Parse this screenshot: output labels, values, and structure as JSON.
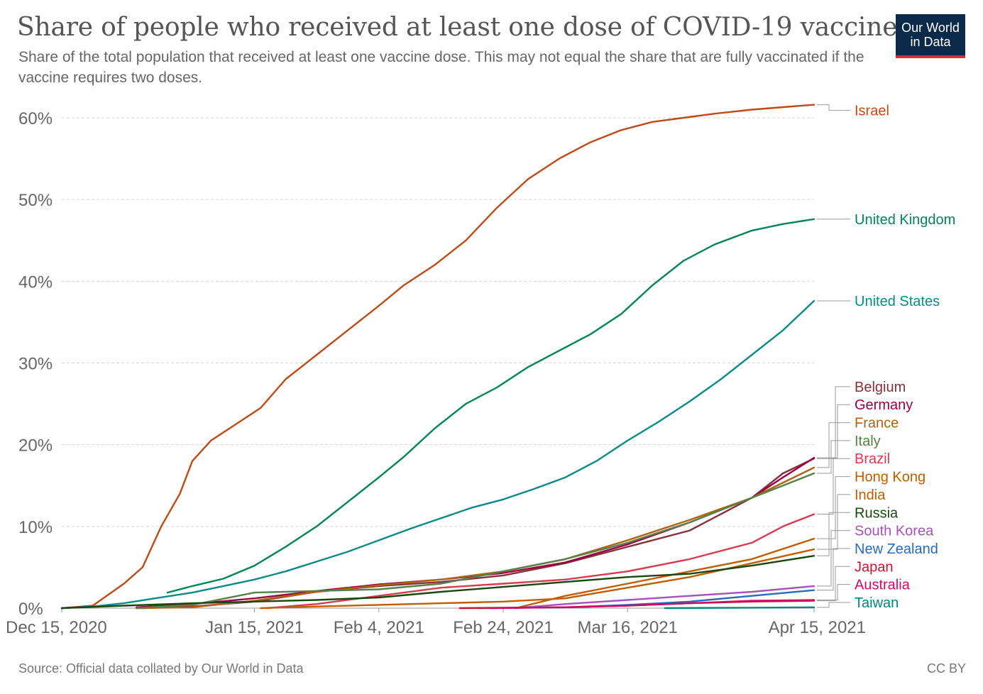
{
  "header": {
    "title": "Share of people who received at least one dose of COVID-19 vaccine",
    "subtitle": "Share of the total population that received at least one vaccine dose. This may not equal the share that are fully vaccinated if the vaccine requires two doses.",
    "logo_line1": "Our World",
    "logo_line2": "in Data"
  },
  "footer": {
    "source": "Source: Official data collated by Our World in Data",
    "license": "CC BY"
  },
  "chart_data": {
    "type": "line",
    "title": "Share of people who received at least one dose of COVID-19 vaccine",
    "xlabel": "",
    "ylabel": "",
    "x_unit": "days",
    "xlim": [
      "2020-12-15",
      "2021-04-15"
    ],
    "ylim": [
      0,
      60
    ],
    "y_ticks": [
      "0%",
      "10%",
      "20%",
      "30%",
      "40%",
      "50%",
      "60%"
    ],
    "y_tick_values": [
      0,
      10,
      20,
      30,
      40,
      50,
      60
    ],
    "x_ticks": [
      "Dec 15, 2020",
      "Jan 15, 2021",
      "Feb 4, 2021",
      "Feb 24, 2021",
      "Mar 16, 2021",
      "Apr 15, 2021"
    ],
    "x_tick_dates": [
      "2020-12-15",
      "2021-01-15",
      "2021-02-04",
      "2021-02-24",
      "2021-03-16",
      "2021-04-15"
    ],
    "grid": "horizontal dashed",
    "legend": "right (line-end labels)",
    "series": [
      {
        "name": "Israel",
        "color": "#be4a17",
        "points": [
          [
            "2020-12-15",
            0
          ],
          [
            "2020-12-20",
            0.3
          ],
          [
            "2020-12-25",
            3
          ],
          [
            "2020-12-28",
            5
          ],
          [
            "2020-12-31",
            10
          ],
          [
            "2021-01-03",
            14
          ],
          [
            "2021-01-05",
            18
          ],
          [
            "2021-01-08",
            20.5
          ],
          [
            "2021-01-12",
            22.5
          ],
          [
            "2021-01-16",
            24.5
          ],
          [
            "2021-01-20",
            28
          ],
          [
            "2021-01-25",
            31
          ],
          [
            "2021-01-30",
            34
          ],
          [
            "2021-02-04",
            37
          ],
          [
            "2021-02-08",
            39.5
          ],
          [
            "2021-02-13",
            42
          ],
          [
            "2021-02-18",
            45
          ],
          [
            "2021-02-23",
            49
          ],
          [
            "2021-02-28",
            52.5
          ],
          [
            "2021-03-05",
            55
          ],
          [
            "2021-03-10",
            57
          ],
          [
            "2021-03-15",
            58.5
          ],
          [
            "2021-03-20",
            59.5
          ],
          [
            "2021-03-25",
            60
          ],
          [
            "2021-03-30",
            60.5
          ],
          [
            "2021-04-05",
            61
          ],
          [
            "2021-04-10",
            61.3
          ],
          [
            "2021-04-15",
            61.6
          ]
        ]
      },
      {
        "name": "United Kingdom",
        "color": "#00845a",
        "points": [
          [
            "2021-01-01",
            1.9
          ],
          [
            "2021-01-05",
            2.7
          ],
          [
            "2021-01-10",
            3.6
          ],
          [
            "2021-01-15",
            5.2
          ],
          [
            "2021-01-20",
            7.5
          ],
          [
            "2021-01-25",
            10
          ],
          [
            "2021-01-30",
            13
          ],
          [
            "2021-02-04",
            16
          ],
          [
            "2021-02-08",
            18.5
          ],
          [
            "2021-02-13",
            22
          ],
          [
            "2021-02-18",
            25
          ],
          [
            "2021-02-23",
            27
          ],
          [
            "2021-02-28",
            29.5
          ],
          [
            "2021-03-05",
            31.5
          ],
          [
            "2021-03-10",
            33.5
          ],
          [
            "2021-03-15",
            36
          ],
          [
            "2021-03-20",
            39.5
          ],
          [
            "2021-03-25",
            42.5
          ],
          [
            "2021-03-30",
            44.5
          ],
          [
            "2021-04-05",
            46.2
          ],
          [
            "2021-04-10",
            47
          ],
          [
            "2021-04-15",
            47.6
          ]
        ]
      },
      {
        "name": "United States",
        "color": "#0b8a8a",
        "points": [
          [
            "2020-12-15",
            0
          ],
          [
            "2020-12-20",
            0.2
          ],
          [
            "2020-12-25",
            0.6
          ],
          [
            "2020-12-30",
            1.2
          ],
          [
            "2021-01-05",
            1.9
          ],
          [
            "2021-01-10",
            2.7
          ],
          [
            "2021-01-15",
            3.5
          ],
          [
            "2021-01-20",
            4.5
          ],
          [
            "2021-01-25",
            5.7
          ],
          [
            "2021-01-30",
            6.9
          ],
          [
            "2021-02-04",
            8.3
          ],
          [
            "2021-02-09",
            9.7
          ],
          [
            "2021-02-14",
            11
          ],
          [
            "2021-02-19",
            12.3
          ],
          [
            "2021-02-24",
            13.3
          ],
          [
            "2021-03-01",
            14.6
          ],
          [
            "2021-03-06",
            16
          ],
          [
            "2021-03-11",
            18
          ],
          [
            "2021-03-16",
            20.5
          ],
          [
            "2021-03-21",
            22.8
          ],
          [
            "2021-03-26",
            25.3
          ],
          [
            "2021-03-31",
            28
          ],
          [
            "2021-04-05",
            31
          ],
          [
            "2021-04-10",
            34
          ],
          [
            "2021-04-15",
            37.6
          ]
        ]
      },
      {
        "name": "Belgium",
        "color": "#883039",
        "points": [
          [
            "2020-12-28",
            0
          ],
          [
            "2021-01-05",
            0.2
          ],
          [
            "2021-01-15",
            0.8
          ],
          [
            "2021-01-25",
            2
          ],
          [
            "2021-02-04",
            2.7
          ],
          [
            "2021-02-14",
            3.2
          ],
          [
            "2021-02-24",
            4
          ],
          [
            "2021-03-06",
            5.5
          ],
          [
            "2021-03-16",
            7.5
          ],
          [
            "2021-03-26",
            9.5
          ],
          [
            "2021-04-05",
            13.5
          ],
          [
            "2021-04-10",
            16.5
          ],
          [
            "2021-04-15",
            18.3
          ]
        ]
      },
      {
        "name": "Germany",
        "color": "#970046",
        "points": [
          [
            "2020-12-27",
            0.1
          ],
          [
            "2021-01-05",
            0.5
          ],
          [
            "2021-01-15",
            1.2
          ],
          [
            "2021-01-25",
            2.1
          ],
          [
            "2021-02-04",
            2.9
          ],
          [
            "2021-02-14",
            3.5
          ],
          [
            "2021-02-24",
            4.3
          ],
          [
            "2021-03-06",
            5.6
          ],
          [
            "2021-03-16",
            7.8
          ],
          [
            "2021-03-26",
            10.5
          ],
          [
            "2021-04-05",
            13.5
          ],
          [
            "2021-04-10",
            16
          ],
          [
            "2021-04-15",
            18.4
          ]
        ]
      },
      {
        "name": "France",
        "color": "#b16214",
        "points": [
          [
            "2020-12-27",
            0
          ],
          [
            "2021-01-05",
            0.1
          ],
          [
            "2021-01-15",
            0.9
          ],
          [
            "2021-01-25",
            2
          ],
          [
            "2021-02-04",
            2.8
          ],
          [
            "2021-02-14",
            3.5
          ],
          [
            "2021-02-24",
            4.5
          ],
          [
            "2021-03-06",
            6
          ],
          [
            "2021-03-16",
            8.3
          ],
          [
            "2021-03-26",
            10.8
          ],
          [
            "2021-04-05",
            13.5
          ],
          [
            "2021-04-15",
            17.2
          ]
        ]
      },
      {
        "name": "Italy",
        "color": "#578145",
        "points": [
          [
            "2020-12-27",
            0
          ],
          [
            "2021-01-05",
            0.4
          ],
          [
            "2021-01-15",
            1.9
          ],
          [
            "2021-01-25",
            2.1
          ],
          [
            "2021-02-04",
            2.3
          ],
          [
            "2021-02-14",
            3
          ],
          [
            "2021-02-24",
            4.5
          ],
          [
            "2021-03-06",
            6
          ],
          [
            "2021-03-16",
            8
          ],
          [
            "2021-03-26",
            10.5
          ],
          [
            "2021-04-05",
            13.5
          ],
          [
            "2021-04-15",
            16.5
          ]
        ]
      },
      {
        "name": "Brazil",
        "color": "#d73c50",
        "points": [
          [
            "2021-01-17",
            0
          ],
          [
            "2021-01-25",
            0.5
          ],
          [
            "2021-02-04",
            1.5
          ],
          [
            "2021-02-14",
            2.5
          ],
          [
            "2021-02-24",
            3
          ],
          [
            "2021-03-06",
            3.5
          ],
          [
            "2021-03-16",
            4.5
          ],
          [
            "2021-03-26",
            6
          ],
          [
            "2021-04-05",
            8
          ],
          [
            "2021-04-10",
            10
          ],
          [
            "2021-04-15",
            11.5
          ]
        ]
      },
      {
        "name": "Hong Kong",
        "color": "#c15d00",
        "points": [
          [
            "2021-02-26",
            0
          ],
          [
            "2021-03-06",
            1.5
          ],
          [
            "2021-03-16",
            3
          ],
          [
            "2021-03-26",
            4.5
          ],
          [
            "2021-04-05",
            6
          ],
          [
            "2021-04-15",
            8.5
          ]
        ]
      },
      {
        "name": "India",
        "color": "#c15d00",
        "points": [
          [
            "2021-01-16",
            0
          ],
          [
            "2021-01-25",
            0.2
          ],
          [
            "2021-02-04",
            0.4
          ],
          [
            "2021-02-24",
            0.8
          ],
          [
            "2021-03-06",
            1.2
          ],
          [
            "2021-03-16",
            2.5
          ],
          [
            "2021-03-26",
            3.8
          ],
          [
            "2021-04-05",
            5.5
          ],
          [
            "2021-04-15",
            7.2
          ]
        ]
      },
      {
        "name": "Russia",
        "color": "#18470f",
        "points": [
          [
            "2020-12-15",
            0
          ],
          [
            "2020-12-25",
            0.3
          ],
          [
            "2021-01-05",
            0.6
          ],
          [
            "2021-01-15",
            0.8
          ],
          [
            "2021-01-25",
            1
          ],
          [
            "2021-02-04",
            1.3
          ],
          [
            "2021-02-14",
            2
          ],
          [
            "2021-02-24",
            2.6
          ],
          [
            "2021-03-06",
            3.2
          ],
          [
            "2021-03-16",
            3.8
          ],
          [
            "2021-03-26",
            4.2
          ],
          [
            "2021-04-05",
            5.2
          ],
          [
            "2021-04-15",
            6.4
          ]
        ]
      },
      {
        "name": "South Korea",
        "color": "#a652ba",
        "points": [
          [
            "2021-02-26",
            0
          ],
          [
            "2021-03-06",
            0.5
          ],
          [
            "2021-03-16",
            1
          ],
          [
            "2021-03-26",
            1.5
          ],
          [
            "2021-04-05",
            2
          ],
          [
            "2021-04-15",
            2.7
          ]
        ]
      },
      {
        "name": "New Zealand",
        "color": "#286bbb",
        "points": [
          [
            "2021-02-20",
            0
          ],
          [
            "2021-03-06",
            0.1
          ],
          [
            "2021-03-16",
            0.4
          ],
          [
            "2021-03-26",
            0.8
          ],
          [
            "2021-04-05",
            1.5
          ],
          [
            "2021-04-15",
            2.2
          ]
        ]
      },
      {
        "name": "Japan",
        "color": "#c4172f",
        "points": [
          [
            "2021-02-17",
            0
          ],
          [
            "2021-03-06",
            0.1
          ],
          [
            "2021-03-16",
            0.3
          ],
          [
            "2021-03-26",
            0.6
          ],
          [
            "2021-04-05",
            0.8
          ],
          [
            "2021-04-15",
            0.9
          ]
        ]
      },
      {
        "name": "Australia",
        "color": "#cf0a66",
        "points": [
          [
            "2021-02-22",
            0
          ],
          [
            "2021-03-06",
            0.1
          ],
          [
            "2021-03-16",
            0.3
          ],
          [
            "2021-03-26",
            0.6
          ],
          [
            "2021-04-05",
            0.9
          ],
          [
            "2021-04-15",
            1
          ]
        ]
      },
      {
        "name": "Taiwan",
        "color": "#00847e",
        "points": [
          [
            "2021-03-22",
            0
          ],
          [
            "2021-04-05",
            0.05
          ],
          [
            "2021-04-15",
            0.1
          ]
        ]
      }
    ],
    "labels": [
      {
        "series": "Israel",
        "text": "Israel",
        "color": "#be4a17",
        "label_value": 60.9
      },
      {
        "series": "United Kingdom",
        "text": "United Kingdom",
        "color": "#00845a",
        "label_value": 47.6
      },
      {
        "series": "United States",
        "text": "United States",
        "color": "#0b8a8a",
        "label_value": 37.6
      },
      {
        "series": "Belgium",
        "text": "Belgium",
        "color": "#883039",
        "label_value": 27.1
      },
      {
        "series": "Germany",
        "text": "Germany",
        "color": "#970046",
        "label_value": 24.9
      },
      {
        "series": "France",
        "text": "France",
        "color": "#b16214",
        "label_value": 22.7
      },
      {
        "series": "Italy",
        "text": "Italy",
        "color": "#578145",
        "label_value": 20.5
      },
      {
        "series": "Brazil",
        "text": "Brazil",
        "color": "#d73c50",
        "label_value": 18.3
      },
      {
        "series": "Hong Kong",
        "text": "Hong Kong",
        "color": "#c15d00",
        "label_value": 16.1
      },
      {
        "series": "India",
        "text": "India",
        "color": "#c15d00",
        "label_value": 13.9
      },
      {
        "series": "Russia",
        "text": "Russia",
        "color": "#18470f",
        "label_value": 11.7
      },
      {
        "series": "South Korea",
        "text": "South Korea",
        "color": "#a652ba",
        "label_value": 9.5
      },
      {
        "series": "New Zealand",
        "text": "New Zealand",
        "color": "#286bbb",
        "label_value": 7.3
      },
      {
        "series": "Japan",
        "text": "Japan",
        "color": "#c4172f",
        "label_value": 5.1
      },
      {
        "series": "Australia",
        "text": "Australia",
        "color": "#cf0a66",
        "label_value": 2.9
      },
      {
        "series": "Taiwan",
        "text": "Taiwan",
        "color": "#00847e",
        "label_value": 0.7
      }
    ]
  }
}
